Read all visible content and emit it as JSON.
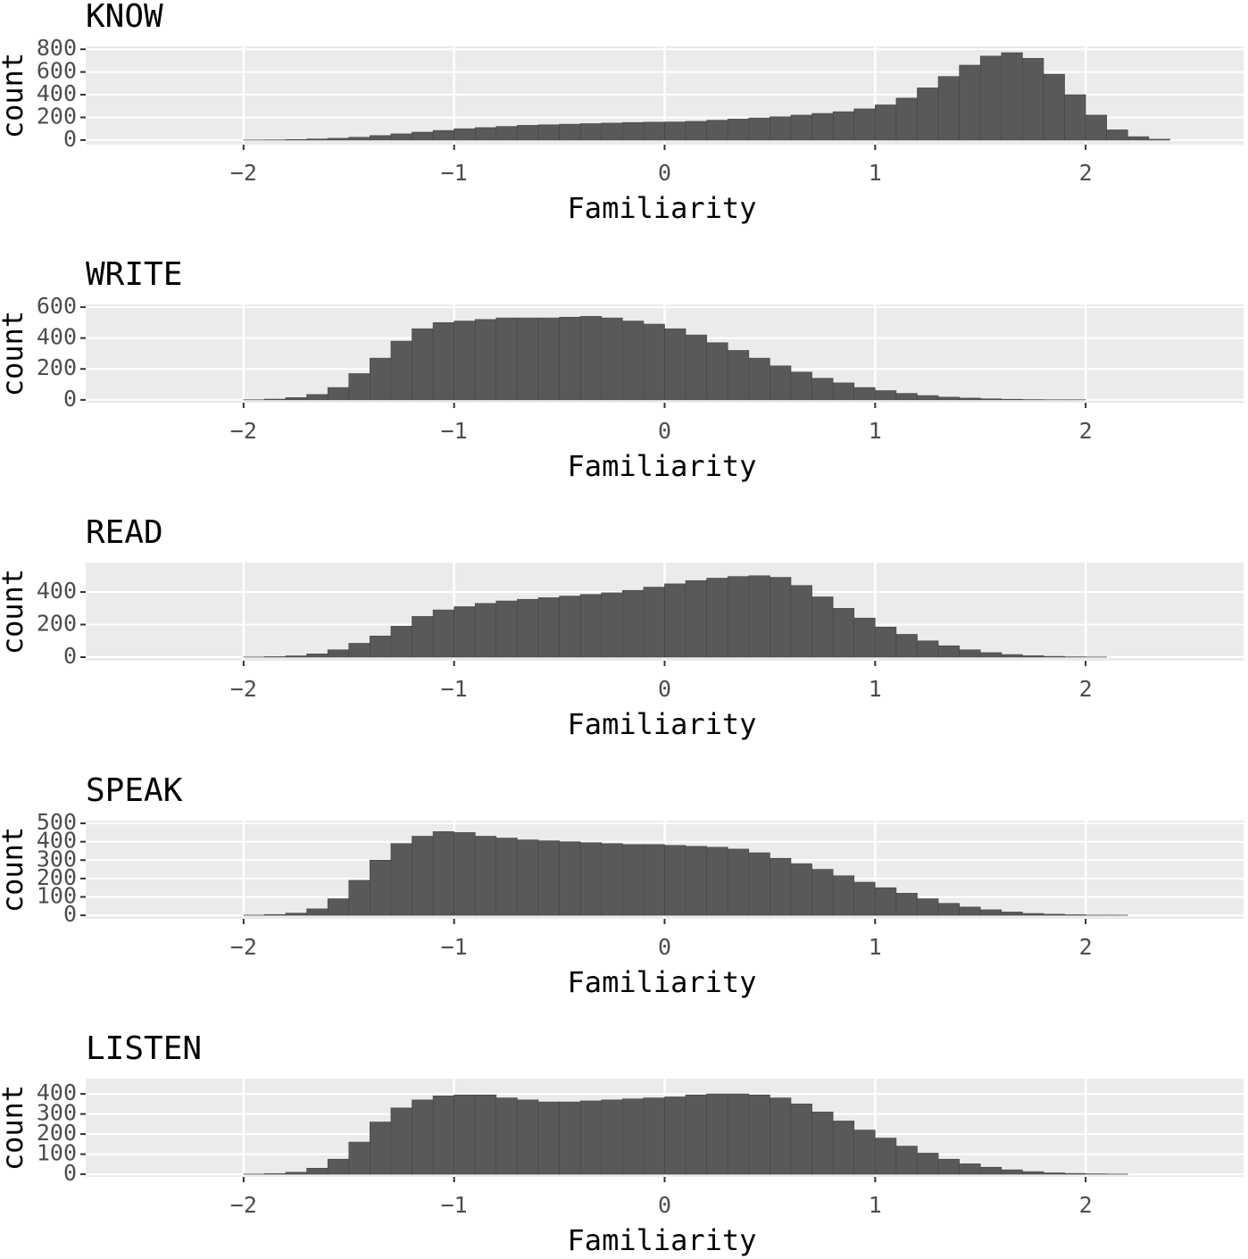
{
  "chart_data": [
    {
      "type": "histogram",
      "title": "KNOW",
      "xlabel": "Familiarity",
      "ylabel": "count",
      "color": "#595959",
      "panel_color": "#ebebeb",
      "grid": true,
      "bins": [
        -2.0,
        -1.9,
        -1.8,
        -1.7,
        -1.6,
        -1.5,
        -1.4,
        -1.3,
        -1.2,
        -1.1,
        -1.0,
        -0.9,
        -0.8,
        -0.7,
        -0.6,
        -0.5,
        -0.4,
        -0.3,
        -0.2,
        -0.1,
        0.0,
        0.1,
        0.2,
        0.3,
        0.4,
        0.5,
        0.6,
        0.7,
        0.8,
        0.9,
        1.0,
        1.1,
        1.2,
        1.3,
        1.4,
        1.5,
        1.6,
        1.7,
        1.8,
        1.9,
        2.0,
        2.1,
        2.2,
        2.3,
        2.4
      ],
      "counts": [
        1,
        2,
        5,
        10,
        16,
        25,
        40,
        55,
        70,
        85,
        100,
        110,
        120,
        130,
        135,
        140,
        145,
        150,
        155,
        158,
        160,
        165,
        175,
        185,
        195,
        205,
        220,
        235,
        250,
        275,
        310,
        370,
        460,
        560,
        660,
        740,
        770,
        720,
        580,
        400,
        220,
        90,
        30,
        8
      ],
      "xlim": [
        -2.75,
        2.75
      ],
      "xticks": [
        {
          "value": -2,
          "label": "−2"
        },
        {
          "value": -1,
          "label": "−1"
        },
        0,
        1,
        2
      ],
      "ylim": [
        -40,
        825
      ],
      "yticks": [
        0,
        200,
        400,
        600,
        800
      ]
    },
    {
      "type": "histogram",
      "title": "WRITE",
      "xlabel": "Familiarity",
      "ylabel": "count",
      "color": "#595959",
      "panel_color": "#ebebeb",
      "grid": true,
      "bins": [
        -2.0,
        -1.9,
        -1.8,
        -1.7,
        -1.6,
        -1.5,
        -1.4,
        -1.3,
        -1.2,
        -1.1,
        -1.0,
        -0.9,
        -0.8,
        -0.7,
        -0.6,
        -0.5,
        -0.4,
        -0.3,
        -0.2,
        -0.1,
        0.0,
        0.1,
        0.2,
        0.3,
        0.4,
        0.5,
        0.6,
        0.7,
        0.8,
        0.9,
        1.0,
        1.1,
        1.2,
        1.3,
        1.4,
        1.5,
        1.6,
        1.7,
        1.8,
        1.9,
        2.0,
        2.1,
        2.2,
        2.3,
        2.4
      ],
      "counts": [
        1,
        5,
        15,
        35,
        80,
        170,
        270,
        380,
        460,
        500,
        510,
        520,
        530,
        530,
        530,
        535,
        540,
        530,
        510,
        490,
        460,
        420,
        370,
        320,
        270,
        220,
        180,
        140,
        110,
        80,
        60,
        42,
        28,
        18,
        12,
        7,
        4,
        2,
        1,
        1,
        0,
        0,
        0,
        0
      ],
      "xlim": [
        -2.75,
        2.75
      ],
      "xticks": [
        {
          "value": -2,
          "label": "−2"
        },
        {
          "value": -1,
          "label": "−1"
        },
        0,
        1,
        2
      ],
      "ylim": [
        -18,
        617
      ],
      "yticks": [
        0,
        200,
        400,
        600
      ]
    },
    {
      "type": "histogram",
      "title": "READ",
      "xlabel": "Familiarity",
      "ylabel": "count",
      "color": "#595959",
      "panel_color": "#ebebeb",
      "grid": true,
      "bins": [
        -2.0,
        -1.9,
        -1.8,
        -1.7,
        -1.6,
        -1.5,
        -1.4,
        -1.3,
        -1.2,
        -1.1,
        -1.0,
        -0.9,
        -0.8,
        -0.7,
        -0.6,
        -0.5,
        -0.4,
        -0.3,
        -0.2,
        -0.1,
        0.0,
        0.1,
        0.2,
        0.3,
        0.4,
        0.5,
        0.6,
        0.7,
        0.8,
        0.9,
        1.0,
        1.1,
        1.2,
        1.3,
        1.4,
        1.5,
        1.6,
        1.7,
        1.8,
        1.9,
        2.0,
        2.1,
        2.2,
        2.3,
        2.4
      ],
      "counts": [
        1,
        3,
        8,
        20,
        45,
        85,
        130,
        190,
        250,
        290,
        310,
        330,
        345,
        355,
        365,
        375,
        385,
        395,
        410,
        430,
        450,
        470,
        485,
        495,
        500,
        490,
        440,
        370,
        300,
        240,
        185,
        140,
        100,
        70,
        45,
        28,
        16,
        9,
        5,
        2,
        1,
        0,
        0,
        0
      ],
      "xlim": [
        -2.75,
        2.75
      ],
      "xticks": [
        {
          "value": -2,
          "label": "−2"
        },
        {
          "value": -1,
          "label": "−1"
        },
        0,
        1,
        2
      ],
      "ylim": [
        -22,
        581
      ],
      "yticks": [
        0,
        200,
        400
      ]
    },
    {
      "type": "histogram",
      "title": "SPEAK",
      "xlabel": "Familiarity",
      "ylabel": "count",
      "color": "#595959",
      "panel_color": "#ebebeb",
      "grid": true,
      "bins": [
        -2.0,
        -1.9,
        -1.8,
        -1.7,
        -1.6,
        -1.5,
        -1.4,
        -1.3,
        -1.2,
        -1.1,
        -1.0,
        -0.9,
        -0.8,
        -0.7,
        -0.6,
        -0.5,
        -0.4,
        -0.3,
        -0.2,
        -0.1,
        0.0,
        0.1,
        0.2,
        0.3,
        0.4,
        0.5,
        0.6,
        0.7,
        0.8,
        0.9,
        1.0,
        1.1,
        1.2,
        1.3,
        1.4,
        1.5,
        1.6,
        1.7,
        1.8,
        1.9,
        2.0,
        2.1,
        2.2,
        2.3,
        2.4
      ],
      "counts": [
        1,
        4,
        12,
        35,
        90,
        190,
        300,
        390,
        430,
        455,
        450,
        430,
        420,
        410,
        405,
        400,
        395,
        390,
        385,
        385,
        380,
        375,
        370,
        360,
        340,
        310,
        280,
        250,
        215,
        180,
        150,
        120,
        90,
        65,
        45,
        30,
        18,
        10,
        6,
        3,
        1,
        1,
        0,
        0
      ],
      "xlim": [
        -2.75,
        2.75
      ],
      "xticks": [
        {
          "value": -2,
          "label": "−2"
        },
        {
          "value": -1,
          "label": "−1"
        },
        0,
        1,
        2
      ],
      "ylim": [
        -19,
        515
      ],
      "yticks": [
        0,
        100,
        200,
        300,
        400,
        500
      ]
    },
    {
      "type": "histogram",
      "title": "LISTEN",
      "xlabel": "Familiarity",
      "ylabel": "count",
      "color": "#595959",
      "panel_color": "#ebebeb",
      "grid": true,
      "bins": [
        -2.0,
        -1.9,
        -1.8,
        -1.7,
        -1.6,
        -1.5,
        -1.4,
        -1.3,
        -1.2,
        -1.1,
        -1.0,
        -0.9,
        -0.8,
        -0.7,
        -0.6,
        -0.5,
        -0.4,
        -0.3,
        -0.2,
        -0.1,
        0.0,
        0.1,
        0.2,
        0.3,
        0.4,
        0.5,
        0.6,
        0.7,
        0.8,
        0.9,
        1.0,
        1.1,
        1.2,
        1.3,
        1.4,
        1.5,
        1.6,
        1.7,
        1.8,
        1.9,
        2.0,
        2.1,
        2.2,
        2.3,
        2.4
      ],
      "counts": [
        1,
        3,
        10,
        30,
        75,
        160,
        260,
        330,
        370,
        390,
        395,
        395,
        380,
        370,
        360,
        360,
        365,
        370,
        375,
        380,
        385,
        395,
        400,
        400,
        395,
        380,
        350,
        310,
        265,
        220,
        180,
        140,
        105,
        75,
        52,
        35,
        22,
        13,
        7,
        4,
        2,
        1,
        0,
        0
      ],
      "xlim": [
        -2.75,
        2.75
      ],
      "xticks": [
        {
          "value": -2,
          "label": "−2"
        },
        {
          "value": -1,
          "label": "−1"
        },
        0,
        1,
        2
      ],
      "ylim": [
        -13,
        476
      ],
      "yticks": [
        0,
        100,
        200,
        300,
        400
      ]
    }
  ]
}
